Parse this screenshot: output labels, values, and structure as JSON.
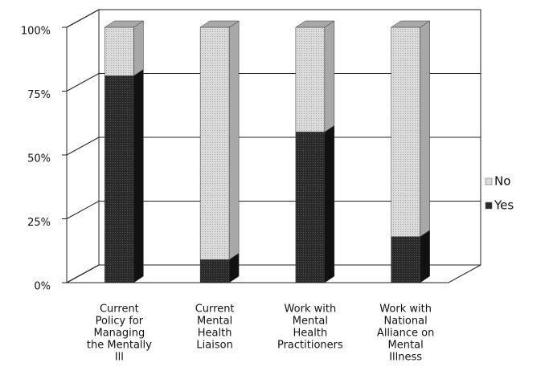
{
  "chart_data": {
    "type": "stacked_bar_3d",
    "categories": [
      [
        "Current",
        "Policy for",
        "Managing",
        "the Mentally",
        "Ill"
      ],
      [
        "Current",
        "Mental",
        "Health",
        "Liaison"
      ],
      [
        "Work with",
        "Mental",
        "Health",
        "Practitioners"
      ],
      [
        "Work with",
        "National",
        "Alliance on",
        "Mental",
        "Illness"
      ]
    ],
    "series": [
      {
        "name": "Yes",
        "color": "#2b2b2b",
        "side": "#111111",
        "values": [
          81,
          9,
          59,
          18
        ]
      },
      {
        "name": "No",
        "color": "#dadada",
        "side": "#a8a8a8",
        "values": [
          19,
          91,
          41,
          82
        ]
      }
    ],
    "ylim": [
      0,
      100
    ],
    "yticks": [
      {
        "value": 0,
        "label": "0%"
      },
      {
        "value": 25,
        "label": "25%"
      },
      {
        "value": 50,
        "label": "50%"
      },
      {
        "value": 75,
        "label": "75%"
      },
      {
        "value": 100,
        "label": "100%"
      }
    ],
    "grid": true,
    "legend": "right"
  }
}
